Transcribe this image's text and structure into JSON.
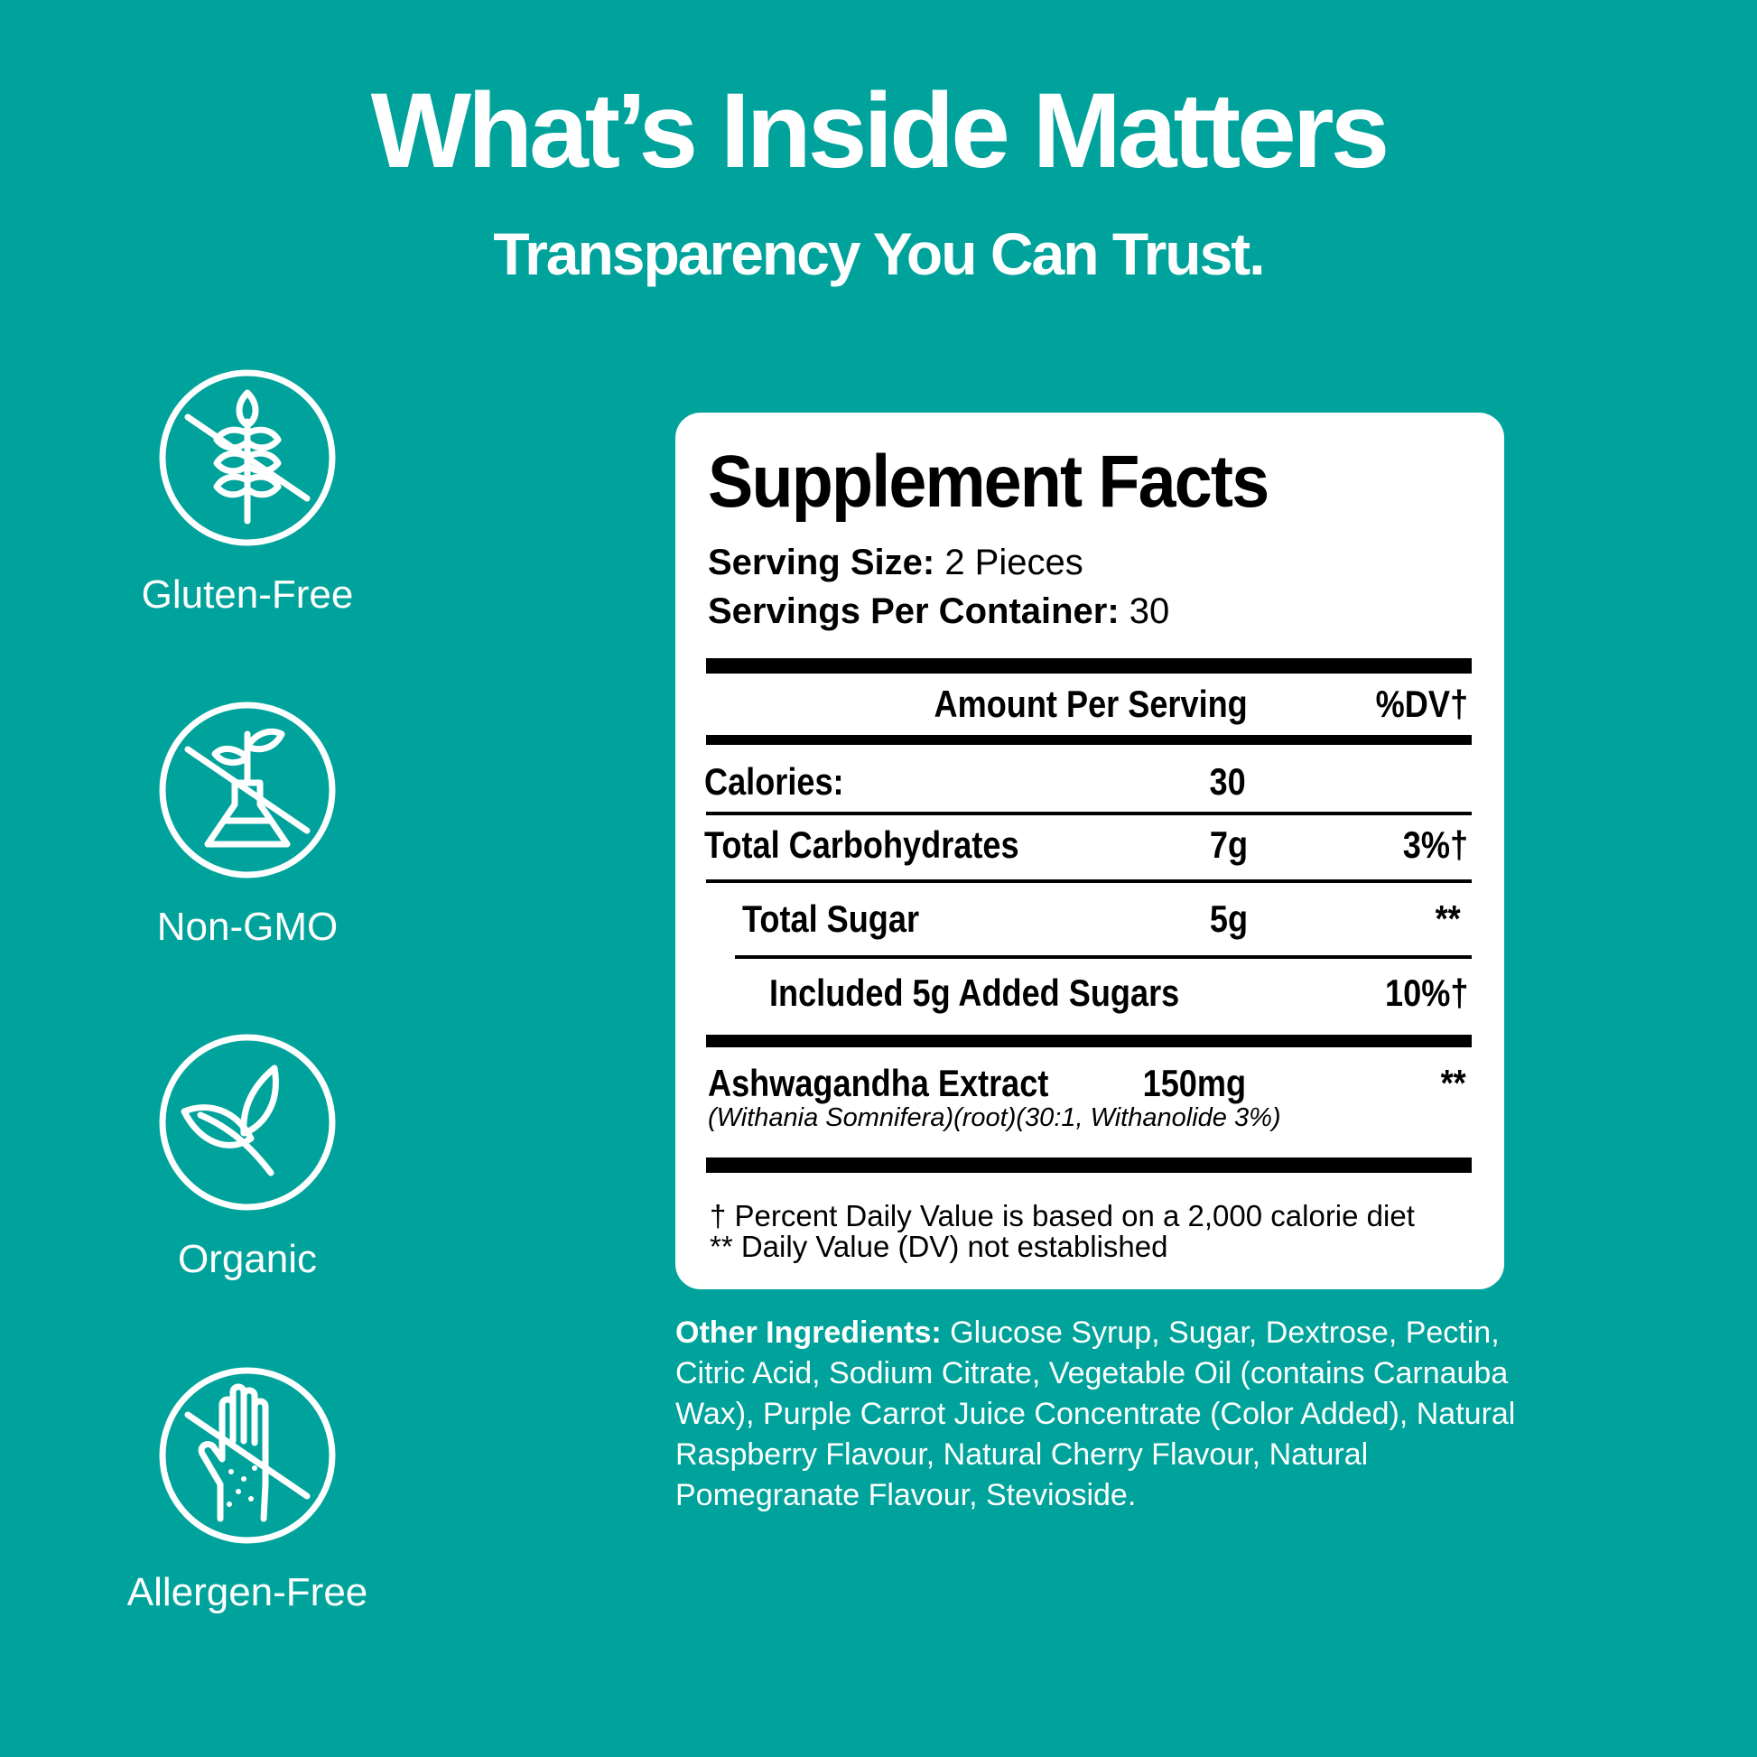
{
  "header": {
    "title": "What’s Inside Matters",
    "subtitle": "Transparency You Can Trust."
  },
  "badges": [
    {
      "label": "Gluten-Free",
      "icon": "wheat-crossed-icon"
    },
    {
      "label": "Non-GMO",
      "icon": "flask-sprout-crossed-icon"
    },
    {
      "label": "Organic",
      "icon": "leaf-icon"
    },
    {
      "label": "Allergen-Free",
      "icon": "hand-crossed-icon"
    }
  ],
  "facts": {
    "title": "Supplement Facts",
    "serving_size_label": "Serving Size:",
    "serving_size_value": " 2 Pieces",
    "servings_label": "Servings Per Container:",
    "servings_value": " 30",
    "header_amount": "Amount Per Serving",
    "header_dv": "%DV†",
    "rows": [
      {
        "name": "Calories:",
        "amount": "30",
        "dv": ""
      },
      {
        "name": "Total Carbohydrates",
        "amount": "7g",
        "dv": "3%†"
      },
      {
        "name": "Total Sugar",
        "amount": "5g",
        "dv": "**"
      },
      {
        "name": "Included 5g Added Sugars",
        "amount": "",
        "dv": "10%†"
      },
      {
        "name": "Ashwagandha Extract",
        "amount": "150mg",
        "dv": "**",
        "detail": "(Withania Somnifera)(root)(30:1, Withanolide 3%)"
      }
    ],
    "footnote_1": "† Percent Daily Value is based on a 2,000 calorie diet",
    "footnote_2": "** Daily Value (DV) not established"
  },
  "other_ingredients": {
    "label": "Other Ingredients:",
    "text": " Glucose Syrup, Sugar, Dextrose, Pectin, Citric Acid, Sodium Citrate, Vegetable Oil (contains Carnauba Wax), Purple Carrot Juice Concentrate (Color Added), Natural Raspberry Flavour, Natural Cherry Flavour, Natural Pomegranate Flavour, Stevioside."
  },
  "colors": {
    "background": "#00A39B",
    "panel": "#FFFFFF",
    "text": "#000000"
  }
}
